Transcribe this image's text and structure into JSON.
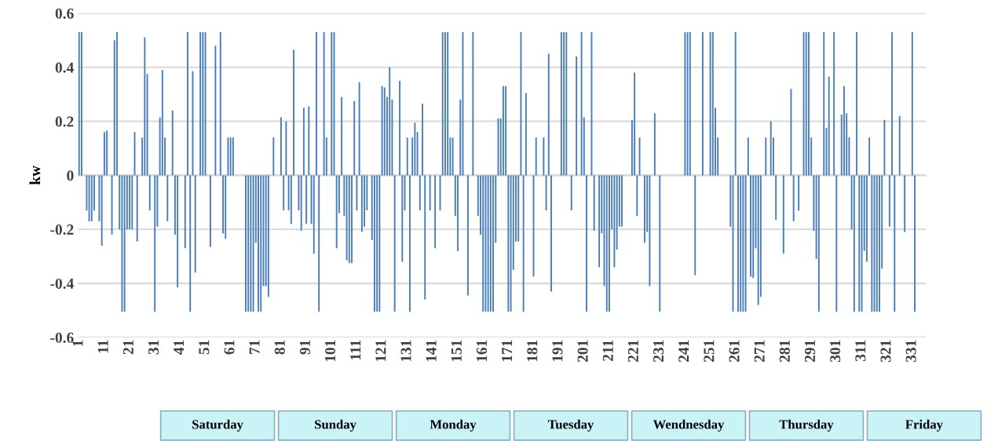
{
  "chart_data": {
    "type": "bar",
    "ylabel": "kw",
    "color": "#4a7eb8",
    "categories": [
      "1",
      null,
      null,
      null,
      null,
      null,
      null,
      null,
      null,
      null,
      "11",
      null,
      null,
      null,
      null,
      null,
      null,
      null,
      null,
      null,
      "21",
      null,
      null,
      null,
      null,
      null,
      null,
      null,
      null,
      null,
      "31",
      null,
      null,
      null,
      null,
      null,
      null,
      null,
      null,
      null,
      "41",
      null,
      null,
      null,
      null,
      null,
      null,
      null,
      null,
      null,
      "51",
      null,
      null,
      null,
      null,
      null,
      null,
      null,
      null,
      null,
      "61",
      null,
      null,
      null,
      null,
      null,
      null,
      null,
      null,
      null,
      "71",
      null,
      null,
      null,
      null,
      null,
      null,
      null,
      null,
      null,
      "81",
      null,
      null,
      null,
      null,
      null,
      null,
      null,
      null,
      null,
      "91",
      null,
      null,
      null,
      null,
      null,
      null,
      null,
      null,
      null,
      "101",
      null,
      null,
      null,
      null,
      null,
      null,
      null,
      null,
      null,
      "111",
      null,
      null,
      null,
      null,
      null,
      null,
      null,
      null,
      null,
      "121",
      null,
      null,
      null,
      null,
      null,
      null,
      null,
      null,
      null,
      "131",
      null,
      null,
      null,
      null,
      null,
      null,
      null,
      null,
      null,
      "141",
      null,
      null,
      null,
      null,
      null,
      null,
      null,
      null,
      null,
      "151",
      null,
      null,
      null,
      null,
      null,
      null,
      null,
      null,
      null,
      "161",
      null,
      null,
      null,
      null,
      null,
      null,
      null,
      null,
      null,
      "171",
      null,
      null,
      null,
      null,
      null,
      null,
      null,
      null,
      null,
      "181",
      null,
      null,
      null,
      null,
      null,
      null,
      null,
      null,
      null,
      "191",
      null,
      null,
      null,
      null,
      null,
      null,
      null,
      null,
      null,
      "201",
      null,
      null,
      null,
      null,
      null,
      null,
      null,
      null,
      null,
      "211",
      null,
      null,
      null,
      null,
      null,
      null,
      null,
      null,
      null,
      "221",
      null,
      null,
      null,
      null,
      null,
      null,
      null,
      null,
      null,
      "231",
      null,
      null,
      null,
      null,
      null,
      null,
      null,
      null,
      null,
      "241",
      null,
      null,
      null,
      null,
      null,
      null,
      null,
      null,
      null,
      "251",
      null,
      null,
      null,
      null,
      null,
      null,
      null,
      null,
      null,
      "261",
      null,
      null,
      null,
      null,
      null,
      null,
      null,
      null,
      null,
      "271",
      null,
      null,
      null,
      null,
      null,
      null,
      null,
      null,
      null,
      "281",
      null,
      null,
      null,
      null,
      null,
      null,
      null,
      null,
      null,
      "291",
      null,
      null,
      null,
      null,
      null,
      null,
      null,
      null,
      null,
      "301",
      null,
      null,
      null,
      null,
      null,
      null,
      null,
      null,
      null,
      "311",
      null,
      null,
      null,
      null,
      null,
      null,
      null,
      null,
      null,
      "321",
      null,
      null,
      null,
      null,
      null,
      null,
      null,
      null,
      null,
      "331",
      null,
      null,
      null,
      null,
      null
    ],
    "values": [
      0.53,
      0.53,
      0,
      -0.13,
      -0.17,
      -0.17,
      -0.13,
      0,
      -0.17,
      -0.26,
      0.16,
      0.165,
      0,
      -0.22,
      0.5,
      0.53,
      -0.2,
      -0.505,
      -0.505,
      -0.2,
      -0.2,
      -0.2,
      0.16,
      -0.245,
      0,
      0.14,
      0.51,
      0.375,
      -0.13,
      0,
      -0.505,
      -0.19,
      0.215,
      0.39,
      0.14,
      -0.17,
      0,
      0.24,
      -0.22,
      -0.415,
      0,
      0,
      -0.27,
      0.53,
      -0.505,
      0.385,
      -0.36,
      0,
      0.53,
      0.53,
      0.53,
      0,
      -0.265,
      0,
      0.48,
      0,
      0.53,
      -0.215,
      -0.235,
      0.14,
      0.14,
      0.14,
      0,
      0,
      0,
      0,
      -0.505,
      -0.505,
      -0.505,
      -0.505,
      -0.25,
      -0.505,
      -0.505,
      -0.41,
      -0.41,
      -0.45,
      0,
      0.14,
      0,
      0,
      0.215,
      -0.13,
      0.2,
      -0.13,
      -0.18,
      0.465,
      0,
      -0.13,
      -0.205,
      0.25,
      -0.18,
      0.255,
      -0.18,
      -0.29,
      0.53,
      -0.505,
      0,
      0.53,
      0.14,
      0,
      0.53,
      0.53,
      -0.27,
      -0.14,
      0.29,
      -0.15,
      -0.315,
      -0.325,
      -0.325,
      0.275,
      -0.13,
      0.345,
      -0.21,
      -0.19,
      -0.13,
      0,
      -0.24,
      -0.505,
      -0.505,
      -0.505,
      0.33,
      0.325,
      0.29,
      0.4,
      0.28,
      -0.505,
      0,
      0.35,
      -0.32,
      -0.13,
      0.14,
      -0.505,
      0.14,
      0.195,
      0.16,
      -0.13,
      0.265,
      -0.46,
      0,
      -0.13,
      0,
      -0.27,
      0,
      -0.13,
      0.53,
      0.53,
      0.53,
      0.14,
      0.14,
      -0.15,
      -0.28,
      0.28,
      0.53,
      0,
      -0.445,
      0,
      0.53,
      0,
      -0.15,
      -0.22,
      -0.505,
      -0.505,
      -0.505,
      -0.505,
      -0.505,
      -0.25,
      0.21,
      0.21,
      0.33,
      0.33,
      -0.505,
      -0.505,
      -0.35,
      -0.245,
      -0.245,
      0.53,
      -0.505,
      0.305,
      0,
      0,
      -0.375,
      0.14,
      0,
      0,
      0.14,
      -0.13,
      0.45,
      -0.43,
      0,
      0,
      0,
      0.53,
      0.53,
      0.53,
      0,
      -0.13,
      0,
      0.44,
      0,
      0.53,
      0.215,
      -0.505,
      0,
      0.53,
      -0.205,
      0,
      -0.34,
      -0.215,
      -0.41,
      -0.505,
      -0.505,
      -0.2,
      -0.34,
      -0.275,
      -0.19,
      -0.19,
      0,
      0,
      0,
      0.205,
      0.38,
      -0.15,
      0.14,
      0,
      -0.25,
      -0.21,
      -0.41,
      0,
      0.23,
      0,
      -0.505,
      0,
      0,
      0,
      0,
      0,
      0,
      0,
      0,
      0,
      0.53,
      0.53,
      0.53,
      0,
      -0.37,
      0,
      0,
      0.53,
      0,
      0,
      0.53,
      0.53,
      0.25,
      0.14,
      0,
      0,
      0,
      0,
      -0.19,
      -0.505,
      0.53,
      -0.505,
      -0.505,
      -0.505,
      -0.505,
      0.14,
      -0.375,
      -0.38,
      -0.27,
      -0.48,
      -0.45,
      0,
      0.14,
      0,
      0.2,
      0.14,
      -0.165,
      0,
      0,
      -0.29,
      0,
      0,
      0.32,
      -0.17,
      0,
      -0.13,
      0,
      0.53,
      0.53,
      0.53,
      0.14,
      -0.205,
      -0.31,
      -0.505,
      0,
      0.53,
      0.175,
      0.365,
      0,
      0.53,
      -0.505,
      0,
      0.225,
      0.33,
      0.23,
      0.14,
      -0.2,
      -0.505,
      0.53,
      -0.505,
      -0.505,
      -0.28,
      -0.32,
      0.14,
      -0.505,
      -0.505,
      -0.505,
      -0.505,
      -0.345,
      0.205,
      0,
      -0.19,
      0.53,
      -0.505,
      0,
      0.22,
      0,
      -0.21,
      0,
      0,
      0.53,
      -0.505,
      0,
      0,
      0,
      0
    ],
    "ylim": [
      -0.6,
      0.6
    ],
    "yticks": [
      -0.6,
      -0.4,
      -0.2,
      0,
      0.2,
      0.4,
      0.6
    ],
    "grid": "y",
    "annotations": [
      "Saturday",
      "Sunday",
      "Monday",
      "Tuesday",
      "Wendnesday",
      "Thursday",
      "Friday"
    ]
  }
}
